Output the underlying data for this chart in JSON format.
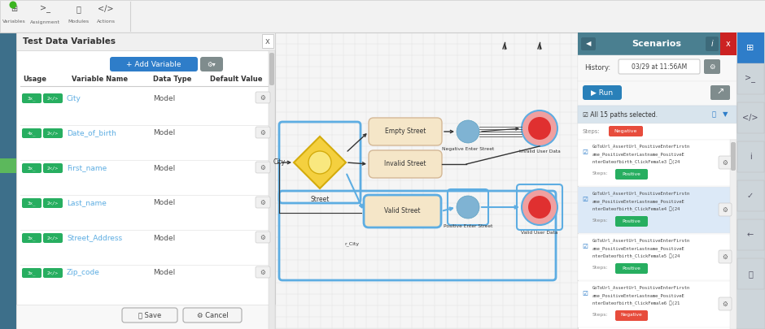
{
  "bg_color": "#e8e8e8",
  "toolbar_bg": "#f5f5f5",
  "panel_title": "Test Data Variables",
  "add_variable_btn_color": "#2e7dc9",
  "add_variable_btn_text": "+ Add Variable",
  "table_headers": [
    "Usage",
    "Variable Name",
    "Data Type",
    "Default Value"
  ],
  "table_rows": [
    {
      "name": "City",
      "type": "Model",
      "n1": "3x_",
      "n2": "2</>"
    },
    {
      "name": "Date_of_birth",
      "type": "Model",
      "n1": "4x_",
      "n2": "2</>"
    },
    {
      "name": "First_name",
      "type": "Model",
      "n1": "3x_",
      "n2": "2</>"
    },
    {
      "name": "Last_name",
      "type": "Model",
      "n1": "3x_",
      "n2": "2</>"
    },
    {
      "name": "Street_Address",
      "type": "Model",
      "n1": "3x_",
      "n2": "2</>"
    },
    {
      "name": "Zip_code",
      "type": "Model",
      "n1": "3x_",
      "n2": "2</>"
    }
  ],
  "badge_green": "#27ae60",
  "name_color": "#5dade2",
  "scenarios_title": "Scenarios",
  "history_text": "03/29 at 11:56AM",
  "run_btn_color": "#2980b9",
  "run_btn_text": "▶ Run",
  "all_paths_text": "All 15 paths selected.",
  "negative_badge_color": "#e74c3c",
  "positive_badge_color": "#27ae60",
  "scenario_items": [
    {
      "num": "3",
      "count": "24",
      "steps_label": "Positive",
      "highlighted": false
    },
    {
      "num": "4",
      "count": "24",
      "steps_label": "Positive",
      "highlighted": true
    },
    {
      "num": "5",
      "count": "24",
      "steps_label": "Positive",
      "highlighted": false
    },
    {
      "num": "6",
      "count": "21",
      "steps_label": "Negative",
      "highlighted": false
    }
  ],
  "save_btn_text": "Save",
  "cancel_btn_text": "Cancel",
  "node_beige": "#f5e6c8",
  "node_beige_border": "#d4b896",
  "node_blue_fill": "#d6eaf8",
  "node_blue_border": "#5dade2",
  "circle_blue": "#7fb3d3",
  "circle_red_outer": "#f0a0a0",
  "circle_red_inner": "#e03030",
  "diamond_yellow": "#f4d03f",
  "diamond_border": "#d4ac0d",
  "arrow_dark": "#333333",
  "arrow_blue": "#5dade2",
  "sidebar_header_bg": "#4a7f90",
  "sidebar_btn_bg": "#5d7d8a",
  "sidebar_active_bg": "#2e7dc9"
}
